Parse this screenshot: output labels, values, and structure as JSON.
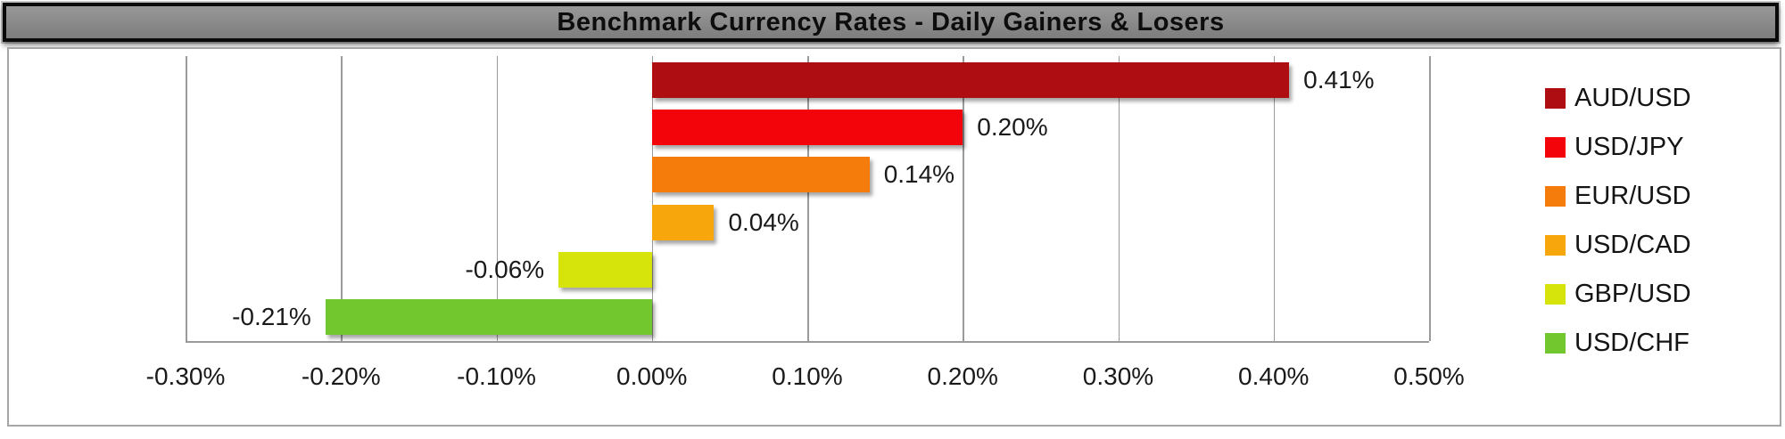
{
  "title": "Benchmark Currency Rates - Daily Gainers & Losers",
  "chart_data": {
    "type": "bar",
    "orientation": "horizontal",
    "title": "Benchmark Currency Rates - Daily Gainers & Losers",
    "categories": [
      "AUD/USD",
      "USD/JPY",
      "EUR/USD",
      "USD/CAD",
      "GBP/USD",
      "USD/CHF"
    ],
    "values": [
      0.41,
      0.2,
      0.14,
      0.04,
      -0.06,
      -0.21
    ],
    "data_labels": [
      "0.41%",
      "0.20%",
      "0.14%",
      "0.04%",
      "-0.06%",
      "-0.21%"
    ],
    "colors": [
      "#AE0E11",
      "#F2040A",
      "#F57C0B",
      "#F7A70C",
      "#D6E40C",
      "#72C72F"
    ],
    "x_ticks": [
      "-0.30%",
      "-0.20%",
      "-0.10%",
      "0.00%",
      "0.10%",
      "0.20%",
      "0.30%",
      "0.40%",
      "0.50%"
    ],
    "xlim": [
      -0.3,
      0.5
    ],
    "xlabel": "",
    "ylabel": "",
    "grid": true,
    "legend_position": "right",
    "style": {
      "title_bar_bg": "#8a8a8a",
      "title_bar_border": "#0a0a0a",
      "chart_box_border": "#a6a6a6",
      "gridline_color": "#9a9a9a",
      "label_color": "#1a1a1a"
    }
  }
}
